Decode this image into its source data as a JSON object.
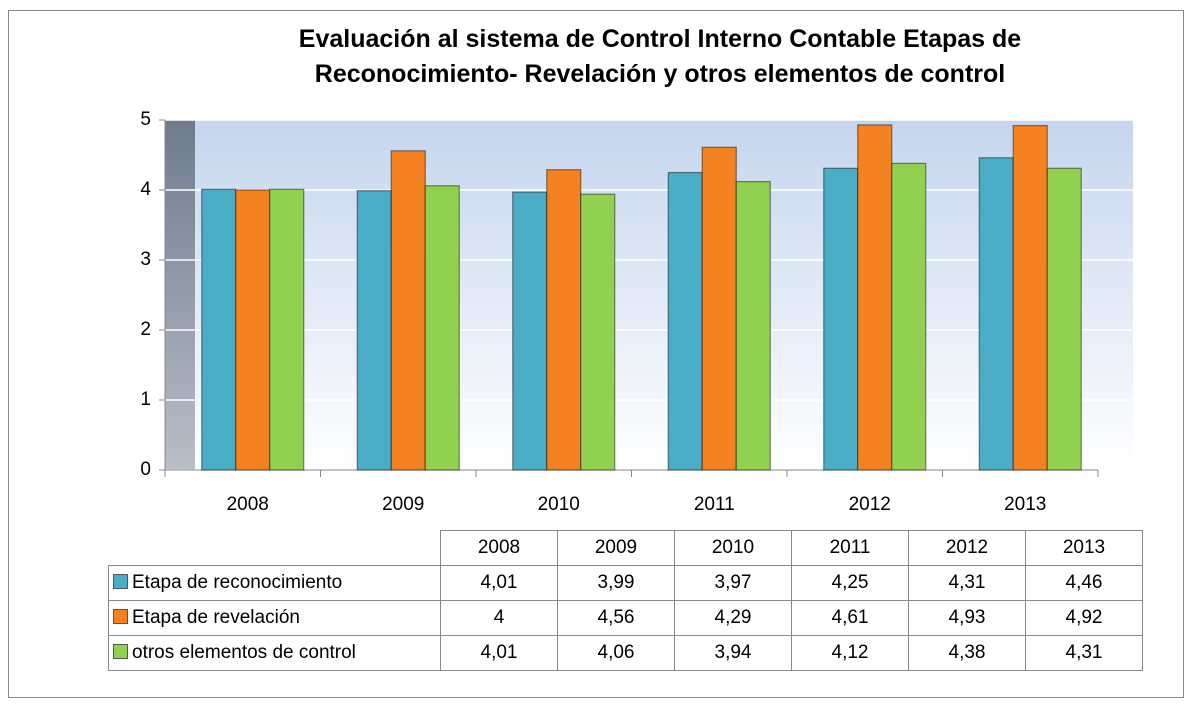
{
  "chart_data": {
    "type": "bar",
    "title": "Evaluación al sistema de Control Interno Contable  Etapas de Reconocimiento- Revelación  y otros elementos de control",
    "categories": [
      "2008",
      "2009",
      "2010",
      "2011",
      "2012",
      "2013"
    ],
    "series": [
      {
        "name": "Etapa de reconocimiento",
        "color": "#4bacc6",
        "values": [
          4.01,
          3.99,
          3.97,
          4.25,
          4.31,
          4.46
        ],
        "value_labels": [
          "4,01",
          "3,99",
          "3,97",
          "4,25",
          "4,31",
          "4,46"
        ]
      },
      {
        "name": "Etapa de revelación",
        "color": "#f58220",
        "values": [
          4,
          4.56,
          4.29,
          4.61,
          4.93,
          4.92
        ],
        "value_labels": [
          "4",
          "4,56",
          "4,29",
          "4,61",
          "4,93",
          "4,92"
        ]
      },
      {
        "name": "otros elementos de control",
        "color": "#92d050",
        "values": [
          4.01,
          4.06,
          3.94,
          4.12,
          4.38,
          4.31
        ],
        "value_labels": [
          "4,01",
          "4,06",
          "3,94",
          "4,12",
          "4,38",
          "4,31"
        ]
      }
    ],
    "ylim": [
      0,
      5
    ],
    "yticks": [
      0,
      1,
      2,
      3,
      4,
      5
    ],
    "grid": true
  }
}
